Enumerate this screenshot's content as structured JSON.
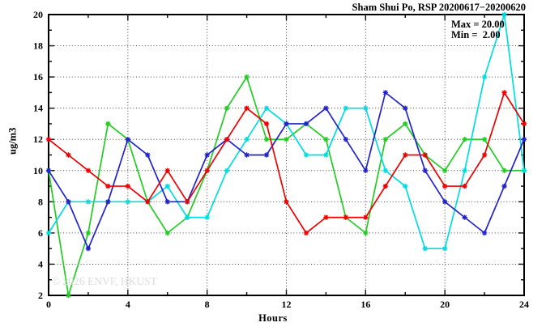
{
  "chart_data": {
    "type": "line",
    "title": "Sham Shui Po, RSP 20200617−20200620",
    "xlabel": "Hours",
    "ylabel": "ug/m3",
    "xlim": [
      0,
      24
    ],
    "ylim": [
      2,
      20
    ],
    "x_tick_labels": [
      0,
      4,
      8,
      12,
      16,
      20,
      24
    ],
    "x_minor_ticks": [
      2,
      6,
      10,
      14,
      18,
      22
    ],
    "y_tick_labels": [
      2,
      4,
      6,
      8,
      10,
      12,
      14,
      16,
      18,
      20
    ],
    "y_minor_step": 1,
    "grid_x_hours": [
      4,
      8,
      12,
      16,
      20
    ],
    "grid_y_values": [
      4,
      6,
      8,
      10,
      12,
      14,
      16,
      18
    ],
    "legend": "none",
    "annotation": {
      "max_label": "Max = 20.00",
      "min_label": "Min =  2.00"
    },
    "watermark": "© 2026 ENVF, HKUST",
    "x": [
      0,
      1,
      2,
      3,
      4,
      5,
      6,
      7,
      8,
      9,
      10,
      11,
      12,
      13,
      14,
      15,
      16,
      17,
      18,
      19,
      20,
      21,
      22,
      23,
      24
    ],
    "series": [
      {
        "name": "red-series",
        "color": "#ee0000",
        "values": [
          12,
          11,
          10,
          9,
          9,
          8,
          10,
          8,
          10,
          12,
          14,
          13,
          8,
          6,
          7,
          7,
          7,
          9,
          11,
          11,
          9,
          9,
          11,
          15,
          13
        ]
      },
      {
        "name": "green-series",
        "color": "#22cc22",
        "values": [
          10,
          2,
          6,
          13,
          12,
          8,
          6,
          7,
          10,
          14,
          16,
          12,
          12,
          13,
          12,
          7,
          6,
          12,
          13,
          11,
          10,
          12,
          12,
          10,
          10
        ]
      },
      {
        "name": "blue-series",
        "color": "#2222cc",
        "values": [
          10,
          8,
          5,
          8,
          12,
          11,
          8,
          8,
          11,
          12,
          11,
          11,
          13,
          13,
          14,
          12,
          10,
          15,
          14,
          10,
          8,
          7,
          6,
          9,
          12
        ]
      },
      {
        "name": "cyan-series",
        "color": "#00dde0",
        "values": [
          6,
          8,
          8,
          8,
          8,
          8,
          9,
          7,
          7,
          10,
          12,
          14,
          13,
          11,
          11,
          14,
          14,
          10,
          9,
          5,
          5,
          10,
          16,
          20,
          10
        ]
      }
    ]
  }
}
